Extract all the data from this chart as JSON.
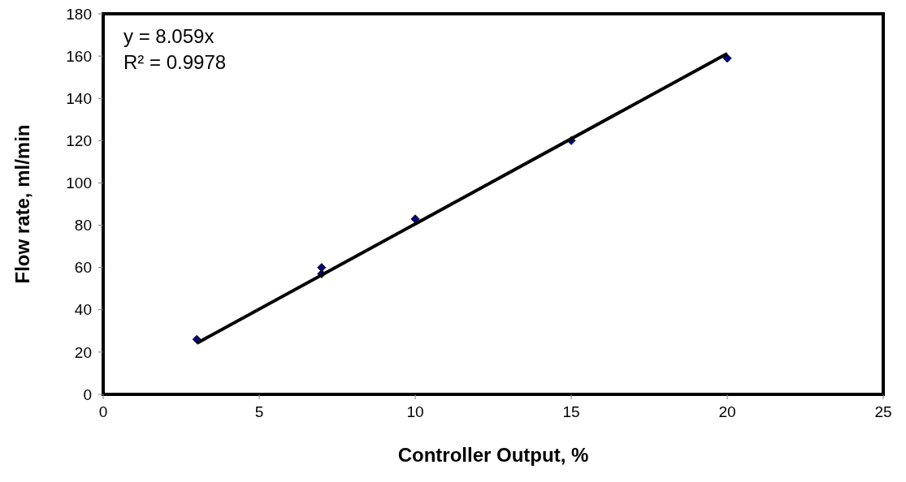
{
  "chart_data": {
    "type": "scatter",
    "xlabel": "Controller Output, %",
    "ylabel": "Flow rate, ml/min",
    "xlim": [
      0,
      25
    ],
    "xticks": [
      0,
      5,
      10,
      15,
      20,
      25
    ],
    "ylim": [
      0,
      180
    ],
    "yticks": [
      0,
      20,
      40,
      60,
      80,
      100,
      120,
      140,
      160,
      180
    ],
    "grid": false,
    "marker": "diamond",
    "series": [
      {
        "color": "#000080",
        "x": [
          3,
          7,
          7,
          10,
          15,
          20
        ],
        "values": [
          26,
          60,
          57,
          83,
          120,
          159
        ]
      },
      {
        "type": "line",
        "color": "#000000",
        "x": [
          3,
          20
        ],
        "values": [
          24.2,
          161.2
        ],
        "marker": "none",
        "line_style": "solid"
      }
    ],
    "annotations": [
      "y = 8.059x",
      "R² = 0.9978"
    ]
  }
}
